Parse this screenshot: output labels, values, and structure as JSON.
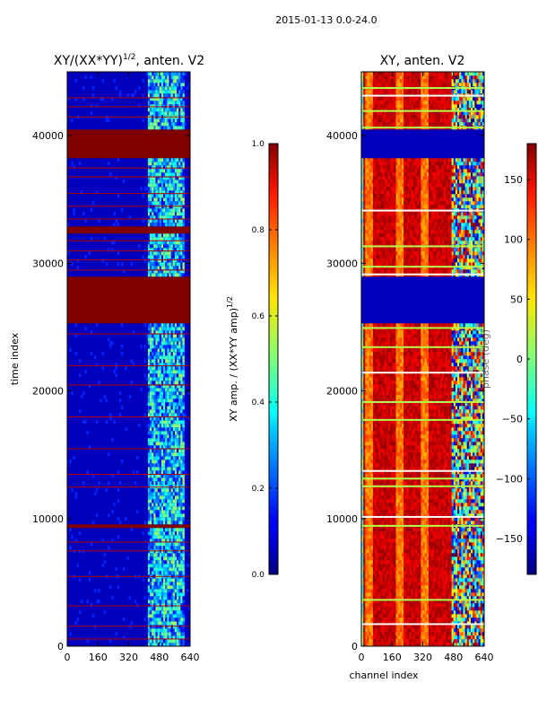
{
  "figure_title": "2015-01-13 0.0-24.0",
  "chart_data": [
    {
      "type": "heatmap",
      "title": "XY/(XX*YY)^1/2, anten. V2",
      "title_main": "XY/(XX*YY)",
      "title_exp": "1/2",
      "title_suffix": ", anten. V2",
      "xlabel": "",
      "ylabel": "time index",
      "xlim": [
        0,
        640
      ],
      "ylim": [
        0,
        45000
      ],
      "xticks": [
        0,
        160,
        320,
        480,
        640
      ],
      "yticks": [
        0,
        10000,
        20000,
        30000,
        40000
      ],
      "colorbar": {
        "label": "XY amp. / (XX*YY amp)^1/2",
        "label_main": "XY amp. / (XX*YY amp)",
        "label_exp": "1/2",
        "range": [
          0.0,
          1.0
        ],
        "ticks": [
          "0.0",
          "0.2",
          "0.4",
          "0.6",
          "0.8",
          "1.0"
        ],
        "colormap": "jet"
      },
      "saturated_time_ranges": [
        [
          9200,
          9600
        ],
        [
          25400,
          29000
        ],
        [
          38300,
          40500
        ],
        [
          32300,
          32800
        ]
      ],
      "active_channel_range": [
        420,
        610
      ]
    },
    {
      "type": "heatmap",
      "title": "XY, anten. V2",
      "xlabel": "channel index",
      "ylabel": "",
      "xlim": [
        0,
        640
      ],
      "ylim": [
        0,
        45000
      ],
      "xticks": [
        0,
        160,
        320,
        480,
        640
      ],
      "yticks": [
        0,
        10000,
        20000,
        30000,
        40000
      ],
      "colorbar": {
        "label": "phase (deg)",
        "range": [
          -180,
          180
        ],
        "ticks": [
          "−150",
          "−100",
          "−50",
          "0",
          "50",
          "100",
          "150"
        ],
        "tick_values": [
          -150,
          -100,
          -50,
          0,
          50,
          100,
          150
        ],
        "colormap": "jet"
      },
      "flagged_time_ranges": [
        [
          25400,
          29000
        ],
        [
          38300,
          40500
        ]
      ],
      "vertical_bands_channels": [
        40,
        200,
        330,
        500
      ]
    }
  ],
  "colors": {
    "jet_dark_blue": "#00008f",
    "jet_dark_red": "#800000"
  }
}
